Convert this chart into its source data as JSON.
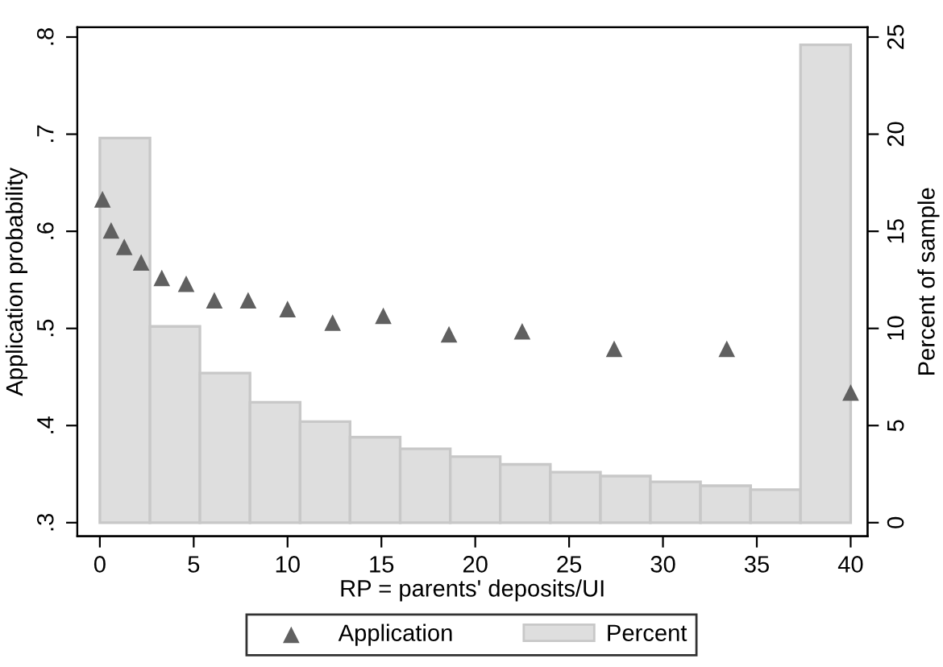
{
  "chart_data": {
    "type": "scatter",
    "xlabel": "RP = parents' deposits/UI",
    "ylabel": "Application probability",
    "y2label": "Percent of sample",
    "series": [
      {
        "name": "Application",
        "color": "#606060",
        "marker": "triangle",
        "x": [
          0.14,
          0.6,
          1.3,
          2.2,
          3.3,
          4.6,
          6.1,
          7.9,
          10.0,
          12.4,
          15.1,
          18.6,
          22.5,
          27.4,
          33.4,
          40.0
        ],
        "values": [
          0.633,
          0.601,
          0.584,
          0.568,
          0.552,
          0.546,
          0.529,
          0.529,
          0.52,
          0.506,
          0.513,
          0.494,
          0.497,
          0.479,
          0.479,
          0.434
        ]
      },
      {
        "name": "Percent",
        "type": "histogram",
        "axis": "y2",
        "color": "#dedede",
        "bins": [
          0,
          2.67,
          5.33,
          8,
          10.67,
          13.33,
          16,
          18.67,
          21.33,
          24,
          26.67,
          29.33,
          32,
          34.67,
          37.33,
          40
        ],
        "values": [
          19.8,
          10.1,
          7.7,
          6.2,
          5.2,
          4.4,
          3.8,
          3.4,
          3.0,
          2.6,
          2.4,
          2.1,
          1.9,
          1.7,
          24.6
        ]
      }
    ],
    "xlim": [
      -1.2,
      40.9
    ],
    "xticks": [
      0,
      5,
      10,
      15,
      20,
      25,
      30,
      35,
      40
    ],
    "ylim": [
      0.286,
      0.81
    ],
    "yticks": [
      {
        "value": 0.3,
        "label": ".3"
      },
      {
        "value": 0.4,
        "label": ".4"
      },
      {
        "value": 0.5,
        "label": ".5"
      },
      {
        "value": 0.6,
        "label": ".6"
      },
      {
        "value": 0.7,
        "label": ".7"
      },
      {
        "value": 0.8,
        "label": ".8"
      }
    ],
    "y2lim": [
      -0.7,
      25.5
    ],
    "y2ticks": [
      0,
      5,
      10,
      15,
      20,
      25
    ],
    "grid": false,
    "legend": "bottom"
  }
}
